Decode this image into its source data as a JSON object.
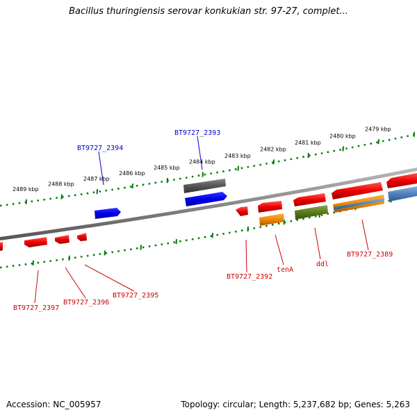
{
  "title": "Bacillus thuringiensis serovar konkukian str. 97-27, complet...",
  "footer": {
    "accession": "Accession: NC_005957",
    "summary": "Topology: circular; Length: 5,237,682 bp; Genes: 5,263"
  },
  "ruler_labels": [
    "2489 kbp",
    "2488 kbp",
    "2487 kbp",
    "2486 kbp",
    "2485 kbp",
    "2484 kbp",
    "2483 kbp",
    "2482 kbp",
    "2481 kbp",
    "2480 kbp",
    "2479 kbp"
  ],
  "colors": {
    "red": "#e00000",
    "blue": "#0000dd",
    "gray": "#555555",
    "orange": "#ee8800",
    "olive": "#5a7a1a",
    "steel_blue": "#4f81bd",
    "tick_green": "#007700",
    "backbone": "#888888"
  },
  "gene_labels": [
    {
      "id": "BT9727_2394",
      "color": "#0000cc"
    },
    {
      "id": "BT9727_2393",
      "color": "#0000cc"
    },
    {
      "id": "BT9727_2392",
      "color": "#cc0000"
    },
    {
      "id": "tenA",
      "color": "#cc0000"
    },
    {
      "id": "ddl",
      "color": "#cc0000"
    },
    {
      "id": "BT9727_2389",
      "color": "#cc0000"
    },
    {
      "id": "BT9727_2397",
      "color": "#cc0000"
    },
    {
      "id": "BT9727_2396",
      "color": "#cc0000"
    },
    {
      "id": "BT9727_2395",
      "color": "#cc0000"
    }
  ]
}
